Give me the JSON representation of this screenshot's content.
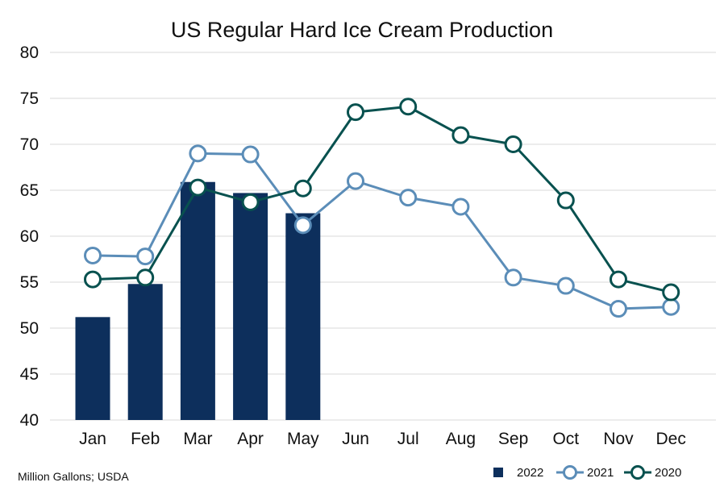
{
  "chart_data": {
    "type": "bar",
    "title": "US Regular Hard Ice Cream Production",
    "source_note": "Million Gallons; USDA",
    "categories": [
      "Jan",
      "Feb",
      "Mar",
      "Apr",
      "May",
      "Jun",
      "Jul",
      "Aug",
      "Sep",
      "Oct",
      "Nov",
      "Dec"
    ],
    "ylim": [
      40,
      80
    ],
    "yticks": [
      40,
      45,
      50,
      55,
      60,
      65,
      70,
      75,
      80
    ],
    "grid": true,
    "legend_position": "bottom-right",
    "series": [
      {
        "name": "2022",
        "type": "bar",
        "color": "#0d2f5c",
        "values": [
          51.2,
          54.8,
          65.9,
          64.7,
          62.5,
          null,
          null,
          null,
          null,
          null,
          null,
          null
        ]
      },
      {
        "name": "2021",
        "type": "line",
        "color": "#5b8db8",
        "values": [
          57.9,
          57.8,
          69.0,
          68.9,
          61.2,
          66.0,
          64.2,
          63.2,
          55.5,
          54.6,
          52.1,
          52.3
        ]
      },
      {
        "name": "2020",
        "type": "line",
        "color": "#08514f",
        "values": [
          55.3,
          55.5,
          65.3,
          63.7,
          65.2,
          73.5,
          74.1,
          71.0,
          70.0,
          63.9,
          55.3,
          53.9
        ]
      }
    ]
  }
}
